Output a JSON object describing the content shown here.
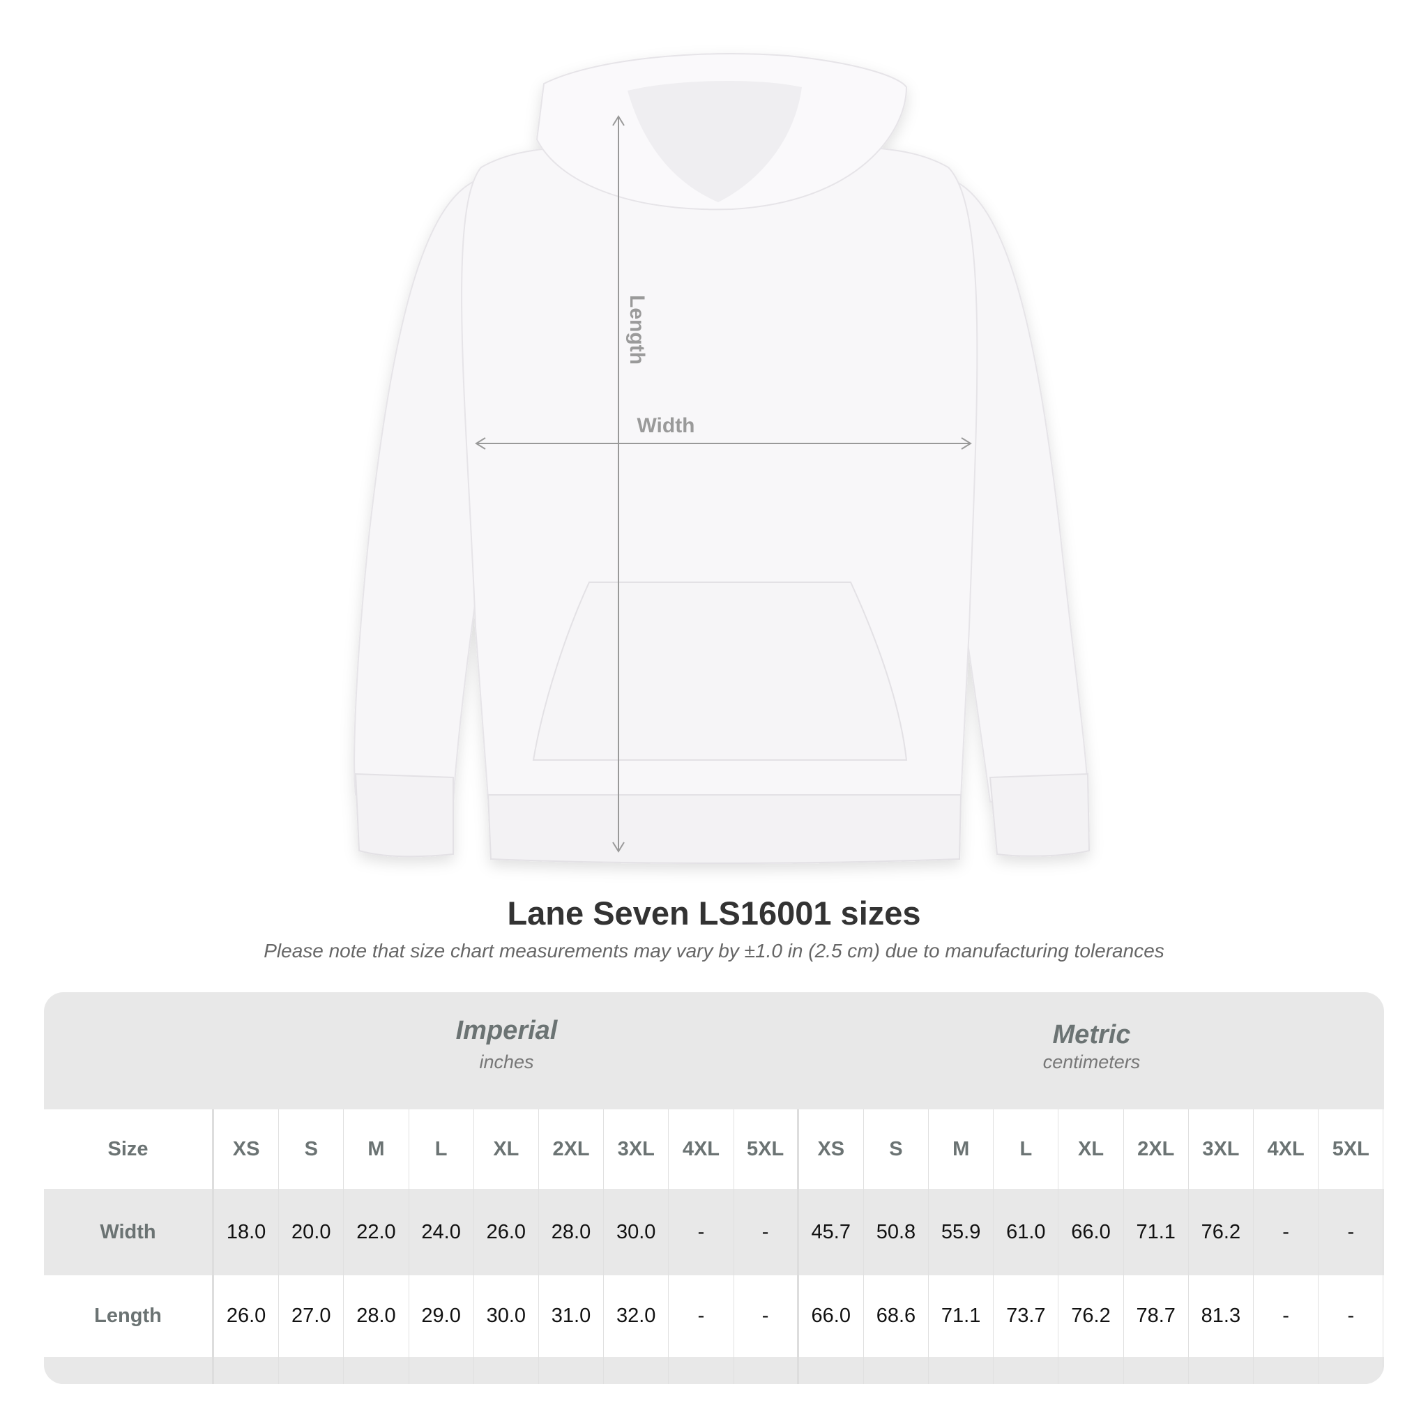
{
  "diagram": {
    "length_label": "Length",
    "width_label": "Width"
  },
  "title": "Lane Seven LS16001 sizes",
  "subtitle": "Please note that size chart measurements may vary by ±1.0 in (2.5 cm) due to manufacturing tolerances",
  "table": {
    "imperial": {
      "title": "Imperial",
      "unit": "inches"
    },
    "metric": {
      "title": "Metric",
      "unit": "centimeters"
    },
    "size_label": "Size",
    "sizes": [
      "XS",
      "S",
      "M",
      "L",
      "XL",
      "2XL",
      "3XL",
      "4XL",
      "5XL"
    ],
    "rows": [
      {
        "label": "Width",
        "imperial": [
          "18.0",
          "20.0",
          "22.0",
          "24.0",
          "26.0",
          "28.0",
          "30.0",
          "-",
          "-"
        ],
        "metric": [
          "45.7",
          "50.8",
          "55.9",
          "61.0",
          "66.0",
          "71.1",
          "76.2",
          "-",
          "-"
        ]
      },
      {
        "label": "Length",
        "imperial": [
          "26.0",
          "27.0",
          "28.0",
          "29.0",
          "30.0",
          "31.0",
          "32.0",
          "-",
          "-"
        ],
        "metric": [
          "66.0",
          "68.6",
          "71.1",
          "73.7",
          "76.2",
          "78.7",
          "81.3",
          "-",
          "-"
        ]
      }
    ]
  }
}
